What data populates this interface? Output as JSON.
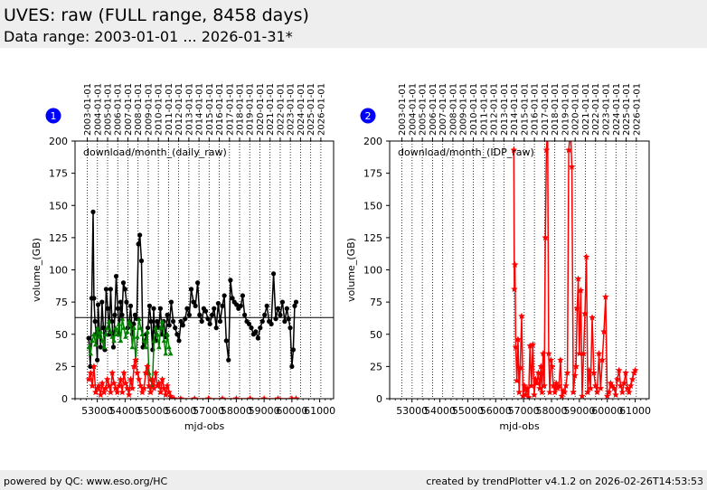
{
  "header": {
    "title": "UVES: raw (FULL range, 8458 days)",
    "subtitle": "Data range: 2003-01-01 ... 2026-01-31*"
  },
  "footer": {
    "left": "powered by QC: www.eso.org/HC",
    "right": "created by trendPlotter v4.1.2 on 2026-02-26T14:53:53"
  },
  "colors": {
    "black": "#000000",
    "green": "#008000",
    "red": "#ff0000",
    "badge": "#0000ff"
  },
  "chart_data": [
    {
      "type": "line",
      "badge": "1",
      "title": "download/month_(daily_raw)",
      "xlabel": "mjd-obs",
      "ylabel": "volume_(GB)",
      "xlim": [
        52200,
        61500
      ],
      "ylim": [
        0,
        200
      ],
      "xticks": [
        53000,
        54000,
        55000,
        56000,
        57000,
        58000,
        59000,
        60000,
        61000
      ],
      "xticklabels": [
        "53000",
        "54000",
        "55000",
        "56000",
        "57000",
        "58000",
        "59000",
        "60000",
        "61000"
      ],
      "yticks": [
        0,
        25,
        50,
        75,
        100,
        125,
        150,
        175,
        200
      ],
      "top_axis_mjd": [
        52640,
        53005,
        53371,
        53736,
        54101,
        54466,
        54832,
        55197,
        55562,
        55927,
        56293,
        56658,
        57023,
        57388,
        57754,
        58119,
        58484,
        58849,
        59215,
        59580,
        59945,
        60310,
        60676,
        61041
      ],
      "top_axis_labels": [
        "2003-01-01",
        "2004-01-01",
        "2005-01-01",
        "2006-01-01",
        "2007-01-01",
        "2008-01-01",
        "2009-01-01",
        "2010-01-01",
        "2011-01-01",
        "2012-01-01",
        "2013-01-01",
        "2014-01-01",
        "2015-01-01",
        "2016-01-01",
        "2017-01-01",
        "2018-01-01",
        "2019-01-01",
        "2020-01-01",
        "2021-01-01",
        "2022-01-01",
        "2023-01-01",
        "2024-01-01",
        "2025-01-01",
        "2026-01-01"
      ],
      "hline": 63,
      "series": [
        {
          "color": "#000000",
          "marker": "circle",
          "x": [
            52690,
            52750,
            52800,
            52850,
            52880,
            52920,
            52960,
            53000,
            53030,
            53080,
            53120,
            53170,
            53220,
            53270,
            53320,
            53380,
            53430,
            53480,
            53530,
            53580,
            53630,
            53680,
            53740,
            53790,
            53840,
            53890,
            53940,
            54000,
            54050,
            54100,
            54150,
            54200,
            54260,
            54310,
            54360,
            54420,
            54480,
            54530,
            54590,
            54640,
            54700,
            54760,
            54820,
            54880,
            54930,
            54990,
            55030,
            55060,
            55100,
            55150,
            55210,
            55270,
            55330,
            55390,
            55460,
            55520,
            55590,
            55660,
            55730,
            55800,
            55870,
            55940,
            56010,
            56080,
            56160,
            56230,
            56310,
            56380,
            56460,
            56530,
            56610,
            56680,
            56760,
            56830,
            56900,
            56980,
            57050,
            57130,
            57200,
            57280,
            57350,
            57420,
            57500,
            57570,
            57640,
            57720,
            57790,
            57860,
            57930,
            58010,
            58080,
            58160,
            58230,
            58300,
            58380,
            58460,
            58540,
            58620,
            58700,
            58780,
            58860,
            58940,
            59020,
            59100,
            59180,
            59260,
            59340,
            59420,
            59500,
            59580,
            59660,
            59740,
            59820,
            59880,
            59940,
            60000,
            60050,
            60100,
            60150
          ],
          "y": [
            47,
            25,
            78,
            145,
            78,
            60,
            50,
            30,
            73,
            52,
            40,
            75,
            55,
            38,
            85,
            70,
            50,
            85,
            60,
            40,
            65,
            95,
            70,
            50,
            75,
            65,
            90,
            85,
            75,
            55,
            60,
            72,
            50,
            58,
            65,
            62,
            120,
            127,
            107,
            40,
            43,
            50,
            55,
            72,
            60,
            38,
            70,
            52,
            45,
            60,
            55,
            70,
            50,
            60,
            48,
            65,
            57,
            75,
            60,
            55,
            50,
            45,
            60,
            57,
            62,
            70,
            65,
            85,
            75,
            72,
            90,
            65,
            60,
            70,
            68,
            62,
            58,
            65,
            70,
            55,
            74,
            60,
            72,
            80,
            45,
            30,
            92,
            78,
            75,
            73,
            70,
            72,
            80,
            65,
            60,
            58,
            55,
            50,
            52,
            47,
            55,
            60,
            65,
            72,
            60,
            58,
            97,
            62,
            70,
            65,
            75,
            60,
            70,
            62,
            55,
            25,
            38,
            72,
            75
          ]
        },
        {
          "color": "#008000",
          "marker": "triangle",
          "x": [
            52700,
            52760,
            52820,
            52880,
            52940,
            53000,
            53060,
            53120,
            53180,
            53240,
            53300,
            53360,
            53420,
            53480,
            53540,
            53600,
            53660,
            53720,
            53780,
            53840,
            53900,
            53960,
            54020,
            54080,
            54140,
            54200,
            54260,
            54320,
            54380,
            54440,
            54500,
            54560,
            54620,
            54680,
            54740,
            54800,
            54860,
            54920,
            54980,
            55040,
            55100,
            55160,
            55220,
            55280,
            55340,
            55400,
            55460,
            55520,
            55580,
            55640
          ],
          "y": [
            40,
            35,
            45,
            50,
            42,
            55,
            48,
            52,
            45,
            40,
            50,
            55,
            60,
            52,
            48,
            45,
            55,
            50,
            58,
            45,
            62,
            55,
            48,
            52,
            60,
            58,
            40,
            55,
            30,
            48,
            62,
            55,
            50,
            45,
            40,
            52,
            20,
            15,
            10,
            45,
            55,
            50,
            40,
            55,
            60,
            45,
            35,
            50,
            40,
            35
          ]
        },
        {
          "color": "#ff0000",
          "marker": "star",
          "x": [
            52700,
            52760,
            52820,
            52880,
            52940,
            53000,
            53060,
            53120,
            53180,
            53240,
            53300,
            53360,
            53420,
            53480,
            53540,
            53600,
            53660,
            53720,
            53780,
            53840,
            53900,
            53960,
            54020,
            54080,
            54140,
            54200,
            54260,
            54320,
            54380,
            54440,
            54500,
            54560,
            54620,
            54680,
            54740,
            54800,
            54860,
            54920,
            54980,
            55040,
            55100,
            55160,
            55220,
            55280,
            55340,
            55400,
            55460,
            55520,
            55580,
            55640,
            55700,
            55760,
            56000,
            56500,
            57000,
            57500,
            58000,
            58500,
            59000,
            59500,
            60000,
            60150
          ],
          "y": [
            15,
            20,
            10,
            25,
            5,
            8,
            10,
            3,
            12,
            5,
            8,
            15,
            10,
            5,
            20,
            12,
            8,
            5,
            10,
            15,
            5,
            20,
            12,
            8,
            3,
            15,
            8,
            25,
            30,
            20,
            15,
            10,
            5,
            8,
            20,
            25,
            10,
            5,
            15,
            8,
            20,
            10,
            12,
            5,
            15,
            8,
            3,
            10,
            5,
            2,
            0,
            0,
            0,
            0,
            0,
            0,
            0,
            0,
            0,
            0,
            0,
            0
          ]
        }
      ]
    },
    {
      "type": "line",
      "badge": "2",
      "title": "download/month_(IDP_raw)",
      "xlabel": "mjd-obs",
      "ylabel": "volume_(GB)",
      "xlim": [
        52200,
        61500
      ],
      "ylim": [
        0,
        200
      ],
      "xticks": [
        53000,
        54000,
        55000,
        56000,
        57000,
        58000,
        59000,
        60000,
        61000
      ],
      "xticklabels": [
        "53000",
        "54000",
        "55000",
        "56000",
        "57000",
        "58000",
        "59000",
        "60000",
        "61000"
      ],
      "yticks": [
        0,
        25,
        50,
        75,
        100,
        125,
        150,
        175,
        200
      ],
      "top_axis_mjd": [
        52640,
        53005,
        53371,
        53736,
        54101,
        54466,
        54832,
        55197,
        55562,
        55927,
        56293,
        56658,
        57023,
        57388,
        57754,
        58119,
        58484,
        58849,
        59215,
        59580,
        59945,
        60310,
        60676,
        61041
      ],
      "top_axis_labels": [
        "2003-01-01",
        "2004-01-01",
        "2005-01-01",
        "2006-01-01",
        "2007-01-01",
        "2008-01-01",
        "2009-01-01",
        "2010-01-01",
        "2011-01-01",
        "2012-01-01",
        "2013-01-01",
        "2014-01-01",
        "2015-01-01",
        "2016-01-01",
        "2017-01-01",
        "2018-01-01",
        "2019-01-01",
        "2020-01-01",
        "2021-01-01",
        "2022-01-01",
        "2023-01-01",
        "2024-01-01",
        "2025-01-01",
        "2026-01-01"
      ],
      "series": [
        {
          "color": "#ff0000",
          "marker": "star",
          "x": [
            56650,
            56670,
            56690,
            56720,
            56760,
            56800,
            56840,
            56880,
            56930,
            56980,
            57030,
            57080,
            57130,
            57180,
            57230,
            57280,
            57330,
            57380,
            57430,
            57480,
            57530,
            57580,
            57620,
            57660,
            57700,
            57740,
            57780,
            57820,
            57860,
            57900,
            57940,
            57980,
            58020,
            58070,
            58120,
            58170,
            58220,
            58270,
            58320,
            58370,
            58420,
            58470,
            58520,
            58570,
            58620,
            58680,
            58730,
            58780,
            58840,
            58880,
            58920,
            58960,
            59000,
            59050,
            59100,
            59150,
            59200,
            59250,
            59300,
            59350,
            59400,
            59460,
            59520,
            59580,
            59640,
            59700,
            59760,
            59820,
            59880,
            59940,
            60000,
            60060,
            60120,
            60180,
            60240,
            60300,
            60360,
            60420,
            60480,
            60540,
            60600,
            60660,
            60720,
            60780,
            60840,
            60900,
            60960,
            61000
          ],
          "y": [
            193,
            85,
            104,
            40,
            14,
            46,
            5,
            24,
            64,
            2,
            10,
            3,
            8,
            1,
            41,
            10,
            42,
            3,
            15,
            12,
            20,
            8,
            25,
            5,
            35,
            10,
            125,
            193,
            210,
            35,
            5,
            30,
            25,
            10,
            5,
            12,
            8,
            10,
            30,
            2,
            6,
            5,
            10,
            20,
            193,
            210,
            180,
            5,
            18,
            25,
            70,
            93,
            35,
            84,
            2,
            35,
            66,
            110,
            5,
            22,
            8,
            63,
            20,
            10,
            5,
            35,
            8,
            30,
            52,
            79,
            2,
            5,
            12,
            10,
            8,
            3,
            15,
            22,
            10,
            5,
            12,
            20,
            8,
            5,
            10,
            15,
            20,
            22
          ]
        }
      ]
    }
  ]
}
